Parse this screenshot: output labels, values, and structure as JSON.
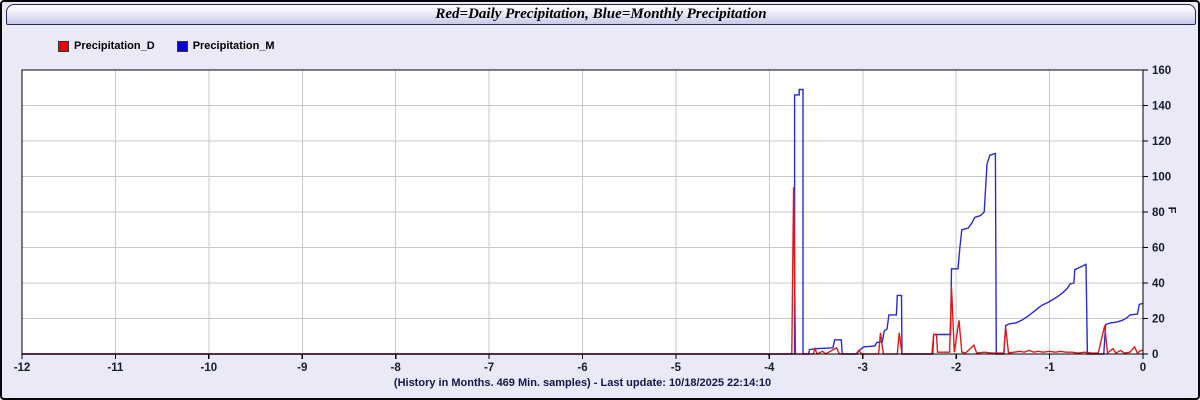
{
  "window": {
    "title": "Red=Daily Precipitation, Blue=Monthly Precipitation"
  },
  "legend": [
    {
      "label": "Precipitation_D",
      "color": "#ee0000"
    },
    {
      "label": "Precipitation_M",
      "color": "#0000dd"
    }
  ],
  "footer": "(History in Months. 469 Min. samples) - Last update: 10/18/2025 22:14:10",
  "chart_data": {
    "type": "line",
    "title": "Red=Daily Precipitation, Blue=Monthly Precipitation",
    "xlabel": "(History in Months. 469 Min. samples) - Last update: 10/18/2025 22:14:10",
    "ylabel": "F",
    "xlim": [
      -12,
      0
    ],
    "ylim": [
      0,
      160
    ],
    "x_ticks": [
      -12,
      -11,
      -10,
      -9,
      -8,
      -7,
      -6,
      -5,
      -4,
      -3,
      -2,
      -1,
      0
    ],
    "y_ticks": [
      0,
      20,
      40,
      60,
      80,
      100,
      120,
      140,
      160
    ],
    "grid": true,
    "grid_color": "#c9c9c9",
    "axis_color": "#000000",
    "plot_bg": "#ffffff",
    "legend_position": "top-left",
    "y_axis_side": "right",
    "series": [
      {
        "name": "Precipitation_M",
        "color": "#2a2ad2",
        "points": [
          [
            -12,
            0
          ],
          [
            -3.73,
            0
          ],
          [
            -3.73,
            146
          ],
          [
            -3.68,
            146
          ],
          [
            -3.68,
            149
          ],
          [
            -3.64,
            149
          ],
          [
            -3.64,
            0
          ],
          [
            -3.58,
            0
          ],
          [
            -3.57,
            2.5
          ],
          [
            -3.5,
            3
          ],
          [
            -3.32,
            3.5
          ],
          [
            -3.3,
            8
          ],
          [
            -3.23,
            8
          ],
          [
            -3.22,
            0
          ],
          [
            -3.07,
            0
          ],
          [
            -3.05,
            1.5
          ],
          [
            -2.99,
            4
          ],
          [
            -2.87,
            4.5
          ],
          [
            -2.85,
            6.5
          ],
          [
            -2.79,
            7
          ],
          [
            -2.77,
            13
          ],
          [
            -2.74,
            14
          ],
          [
            -2.72,
            22
          ],
          [
            -2.64,
            22
          ],
          [
            -2.63,
            33
          ],
          [
            -2.585,
            33
          ],
          [
            -2.58,
            0
          ],
          [
            -2.25,
            0
          ],
          [
            -2.24,
            11
          ],
          [
            -2.06,
            11
          ],
          [
            -2.05,
            48
          ],
          [
            -1.98,
            48
          ],
          [
            -1.96,
            60
          ],
          [
            -1.94,
            70
          ],
          [
            -1.87,
            71
          ],
          [
            -1.83,
            74
          ],
          [
            -1.8,
            77
          ],
          [
            -1.74,
            78
          ],
          [
            -1.7,
            80
          ],
          [
            -1.67,
            107
          ],
          [
            -1.64,
            112
          ],
          [
            -1.58,
            113
          ],
          [
            -1.57,
            0
          ],
          [
            -1.49,
            0
          ],
          [
            -1.47,
            16
          ],
          [
            -1.43,
            17
          ],
          [
            -1.36,
            17.5
          ],
          [
            -1.3,
            19
          ],
          [
            -1.24,
            21
          ],
          [
            -1.19,
            23
          ],
          [
            -1.13,
            25.5
          ],
          [
            -1.08,
            27.5
          ],
          [
            -1.02,
            29
          ],
          [
            -0.97,
            30.5
          ],
          [
            -0.91,
            32.5
          ],
          [
            -0.86,
            34.5
          ],
          [
            -0.81,
            37
          ],
          [
            -0.78,
            39.5
          ],
          [
            -0.74,
            40
          ],
          [
            -0.73,
            47.5
          ],
          [
            -0.67,
            49
          ],
          [
            -0.61,
            50.5
          ],
          [
            -0.595,
            0
          ],
          [
            -0.42,
            0
          ],
          [
            -0.4,
            16.5
          ],
          [
            -0.35,
            17.5
          ],
          [
            -0.28,
            18
          ],
          [
            -0.22,
            19
          ],
          [
            -0.17,
            20.5
          ],
          [
            -0.14,
            22
          ],
          [
            -0.06,
            22.5
          ],
          [
            -0.04,
            28
          ],
          [
            0,
            28.5
          ]
        ]
      },
      {
        "name": "Precipitation_D",
        "color": "#e01818",
        "points": [
          [
            -12,
            0
          ],
          [
            -3.76,
            0
          ],
          [
            -3.74,
            94
          ],
          [
            -3.72,
            0
          ],
          [
            -3.53,
            0
          ],
          [
            -3.51,
            3
          ],
          [
            -3.49,
            0
          ],
          [
            -3.43,
            1.5
          ],
          [
            -3.4,
            0
          ],
          [
            -3.28,
            3.5
          ],
          [
            -3.25,
            0
          ],
          [
            -3.06,
            0
          ],
          [
            -3.04,
            2
          ],
          [
            -3.01,
            0
          ],
          [
            -2.83,
            0
          ],
          [
            -2.81,
            12
          ],
          [
            -2.78,
            0
          ],
          [
            -2.63,
            0
          ],
          [
            -2.61,
            12
          ],
          [
            -2.58,
            0
          ],
          [
            -2.26,
            0
          ],
          [
            -2.24,
            11
          ],
          [
            -2.21,
            11
          ],
          [
            -2.2,
            1
          ],
          [
            -2.1,
            1
          ],
          [
            -2.07,
            1
          ],
          [
            -2.05,
            38
          ],
          [
            -2.02,
            1
          ],
          [
            -1.97,
            19
          ],
          [
            -1.94,
            1
          ],
          [
            -1.9,
            0.5
          ],
          [
            -1.81,
            5
          ],
          [
            -1.78,
            0.5
          ],
          [
            -1.7,
            1
          ],
          [
            -1.62,
            0.5
          ],
          [
            -1.58,
            0.5
          ],
          [
            -1.49,
            0.5
          ],
          [
            -1.47,
            15
          ],
          [
            -1.44,
            0.5
          ],
          [
            -1.38,
            1
          ],
          [
            -1.32,
            1.5
          ],
          [
            -1.27,
            1
          ],
          [
            -1.22,
            2
          ],
          [
            -1.17,
            1
          ],
          [
            -1.12,
            1.5
          ],
          [
            -1.07,
            1
          ],
          [
            -1,
            1.5
          ],
          [
            -0.94,
            1
          ],
          [
            -0.88,
            1.5
          ],
          [
            -0.83,
            1
          ],
          [
            -0.76,
            1
          ],
          [
            -0.7,
            0.5
          ],
          [
            -0.62,
            1
          ],
          [
            -0.55,
            0.5
          ],
          [
            -0.48,
            0.5
          ],
          [
            -0.41,
            16
          ],
          [
            -0.38,
            0.5
          ],
          [
            -0.32,
            3
          ],
          [
            -0.29,
            0.5
          ],
          [
            -0.24,
            2
          ],
          [
            -0.2,
            0.5
          ],
          [
            -0.14,
            1
          ],
          [
            -0.09,
            4
          ],
          [
            -0.06,
            0.5
          ],
          [
            -0.02,
            2
          ],
          [
            0,
            2
          ]
        ]
      }
    ]
  }
}
